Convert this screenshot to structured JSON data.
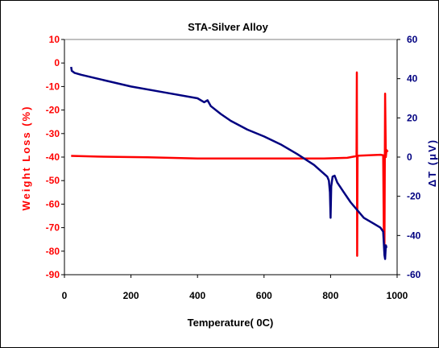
{
  "chart_data": {
    "type": "line",
    "title": "STA-Silver Alloy",
    "xlabel": "Temperature( 0C)",
    "ylabel_left": "Weight Loss (%)",
    "ylabel_right": "ΔT (μV)",
    "xlim": [
      0,
      1000
    ],
    "ylim_left": [
      -90,
      10
    ],
    "ylim_right": [
      -60,
      60
    ],
    "x_ticks": [
      "0",
      "200",
      "400",
      "600",
      "800",
      "1000"
    ],
    "y_left_ticks": [
      "10",
      "0",
      "-10",
      "-20",
      "-30",
      "-40",
      "-50",
      "-60",
      "-70",
      "-80",
      "-90"
    ],
    "y_right_ticks": [
      "60",
      "40",
      "20",
      "0",
      "-20",
      "-40",
      "-60"
    ],
    "grid": false,
    "legend": "none",
    "colors": {
      "left_axis": "#ff0000",
      "right_axis": "#000080"
    },
    "series": [
      {
        "axis": "left",
        "color": "#ff0000",
        "x": [
          20,
          100,
          250,
          400,
          500,
          600,
          700,
          780,
          850,
          870,
          878,
          879,
          880,
          881,
          885,
          950,
          958,
          960,
          962,
          964,
          966,
          968,
          972
        ],
        "values": [
          -39.5,
          -39.8,
          -40.1,
          -40.6,
          -40.6,
          -40.6,
          -40.6,
          -40.6,
          -40.3,
          -39.8,
          -39.6,
          -4,
          -82,
          -39.6,
          -39.4,
          -39.0,
          -39.2,
          -72,
          -77,
          -13,
          -40,
          -37,
          -37.8
        ]
      },
      {
        "axis": "right",
        "color": "#000080",
        "x": [
          20,
          22,
          30,
          50,
          100,
          200,
          300,
          400,
          420,
          430,
          440,
          470,
          500,
          550,
          600,
          650,
          700,
          750,
          790,
          795,
          798,
          800,
          802,
          806,
          812,
          820,
          840,
          860,
          880,
          900,
          930,
          950,
          958,
          962,
          964,
          966,
          968,
          970
        ],
        "values": [
          46,
          44,
          43,
          42,
          40,
          36,
          33,
          30,
          28,
          29,
          26,
          22,
          18.5,
          14,
          10.5,
          6.5,
          1.5,
          -4,
          -10,
          -12,
          -18,
          -31,
          -15,
          -10,
          -9.5,
          -13,
          -18,
          -23,
          -27,
          -31,
          -34,
          -36,
          -38,
          -50,
          -52,
          -45,
          -46,
          -46
        ]
      }
    ]
  }
}
